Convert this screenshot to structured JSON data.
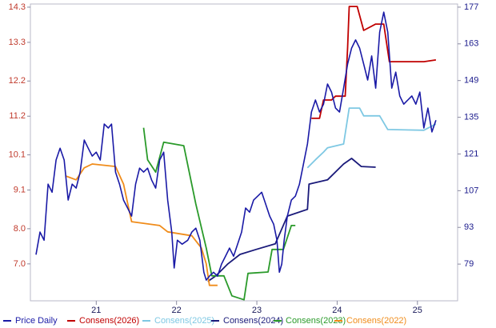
{
  "chart_data": {
    "type": "line",
    "xlim": [
      20.18,
      25.5
    ],
    "xticks": [
      21,
      22,
      23,
      24,
      25
    ],
    "ylim": [
      5.95,
      14.39
    ],
    "yticks": [
      14.3,
      13.3,
      12.2,
      11.2,
      10.1,
      9.1,
      {
        "value": 8.0,
        "label": "8.0"
      },
      {
        "value": 7.0,
        "label": "7.0"
      }
    ],
    "y2lim": [
      65,
      178.2
    ],
    "y2ticks": [
      177,
      163,
      149,
      135,
      121,
      107,
      93,
      79
    ],
    "ycolor": "#c0392b",
    "y2color": "#1a1a8c",
    "series": [
      {
        "name": "Price Daily",
        "color": "#1a1aa6",
        "axis": "y2",
        "x": [
          20.25,
          20.3,
          20.35,
          20.4,
          20.45,
          20.5,
          20.55,
          20.6,
          20.65,
          20.7,
          20.75,
          20.8,
          20.85,
          20.9,
          20.95,
          21.0,
          21.05,
          21.1,
          21.15,
          21.19,
          21.24,
          21.29,
          21.34,
          21.39,
          21.44,
          21.49,
          21.54,
          21.59,
          21.64,
          21.69,
          21.74,
          21.79,
          21.84,
          21.89,
          21.94,
          21.97,
          22.01,
          22.07,
          22.14,
          22.19,
          22.24,
          22.29,
          22.34,
          22.37,
          22.41,
          22.46,
          22.51,
          22.56,
          22.61,
          22.66,
          22.71,
          22.76,
          22.81,
          22.86,
          22.91,
          22.96,
          23.01,
          23.06,
          23.11,
          23.16,
          23.21,
          23.25,
          23.28,
          23.31,
          23.34,
          23.38,
          23.43,
          23.48,
          23.53,
          23.58,
          23.63,
          23.68,
          23.73,
          23.78,
          23.83,
          23.88,
          23.93,
          23.98,
          24.03,
          24.08,
          24.13,
          24.18,
          24.23,
          24.28,
          24.33,
          24.38,
          24.43,
          24.48,
          24.53,
          24.58,
          24.63,
          24.68,
          24.73,
          24.78,
          24.83,
          24.88,
          24.93,
          24.98,
          25.03,
          25.08,
          25.13,
          25.18,
          25.23
        ],
        "values": [
          82.6,
          91.2,
          88.1,
          109.5,
          106.4,
          118.7,
          123.2,
          118.7,
          103.4,
          109.5,
          108.0,
          114.1,
          126.3,
          123.2,
          120.2,
          121.7,
          118.7,
          132.4,
          130.9,
          132.4,
          114.1,
          109.5,
          103.4,
          100.4,
          97.3,
          109.5,
          115.6,
          114.1,
          115.6,
          111.0,
          108.0,
          118.7,
          121.7,
          103.4,
          91.2,
          77.5,
          88.1,
          86.6,
          88.1,
          91.2,
          92.7,
          88.1,
          75.9,
          72.9,
          74.4,
          75.9,
          74.4,
          79.0,
          82.0,
          85.1,
          82.0,
          86.6,
          91.2,
          100.4,
          98.8,
          103.4,
          104.9,
          106.4,
          101.9,
          97.3,
          94.2,
          88.1,
          75.9,
          79.0,
          88.1,
          97.3,
          103.4,
          104.9,
          109.5,
          117.1,
          124.8,
          137.0,
          141.6,
          137.0,
          140.0,
          147.7,
          144.6,
          138.5,
          137.0,
          146.1,
          155.3,
          161.4,
          164.5,
          161.4,
          155.3,
          149.2,
          158.4,
          146.1,
          167.5,
          175.1,
          167.5,
          146.1,
          152.2,
          143.1,
          140.0,
          141.6,
          143.1,
          140.0,
          144.6,
          130.9,
          138.5,
          129.4,
          133.9
        ]
      },
      {
        "name": "Consens(2026)",
        "color": "#c00000",
        "x": [
          23.68,
          23.78,
          23.83,
          23.93,
          23.98,
          24.1,
          24.13,
          24.15,
          24.25,
          24.33,
          24.48,
          24.58,
          24.65,
          25.08,
          25.23
        ],
        "values": [
          11.14,
          11.14,
          11.66,
          11.66,
          11.77,
          11.77,
          13.14,
          14.32,
          14.32,
          13.64,
          13.82,
          13.82,
          12.75,
          12.75,
          12.8
        ]
      },
      {
        "name": "Consens(2025)",
        "color": "#7ec8e3",
        "x": [
          23.63,
          23.73,
          23.83,
          23.88,
          24.08,
          24.15,
          24.28,
          24.33,
          24.53,
          24.63,
          25.08,
          25.23
        ],
        "values": [
          9.73,
          9.96,
          10.18,
          10.3,
          10.41,
          11.43,
          11.43,
          11.21,
          11.21,
          10.82,
          10.8,
          10.98
        ]
      },
      {
        "name": "Consens(2024)",
        "color": "#1a1a7a",
        "x": [
          22.39,
          22.49,
          22.64,
          22.79,
          22.99,
          23.23,
          23.38,
          23.63,
          23.65,
          23.88,
          24.08,
          24.18,
          24.3,
          24.48
        ],
        "values": [
          6.5,
          6.66,
          7.0,
          7.27,
          7.41,
          7.57,
          8.36,
          8.55,
          9.27,
          9.39,
          9.84,
          10.0,
          9.77,
          9.75
        ]
      },
      {
        "name": "Consens(2023)",
        "color": "#2a9a2a",
        "x": [
          21.59,
          21.64,
          21.74,
          21.84,
          22.09,
          22.24,
          22.37,
          22.44,
          22.59,
          22.69,
          22.84,
          22.89,
          23.14,
          23.19,
          23.33,
          23.43,
          23.48
        ],
        "values": [
          10.87,
          9.96,
          9.61,
          10.46,
          10.36,
          8.7,
          7.45,
          6.66,
          6.66,
          6.09,
          5.98,
          6.73,
          6.77,
          7.41,
          7.41,
          8.09,
          8.09
        ]
      },
      {
        "name": "Consens(2022)",
        "color": "#f08c1a",
        "x": [
          20.62,
          20.75,
          20.85,
          20.95,
          21.24,
          21.34,
          21.44,
          21.79,
          21.89,
          22.19,
          22.31,
          22.37,
          22.41,
          22.51
        ],
        "values": [
          9.5,
          9.39,
          9.73,
          9.84,
          9.77,
          9.27,
          8.2,
          8.09,
          7.91,
          7.8,
          7.45,
          7.0,
          6.39,
          6.39
        ]
      }
    ]
  }
}
